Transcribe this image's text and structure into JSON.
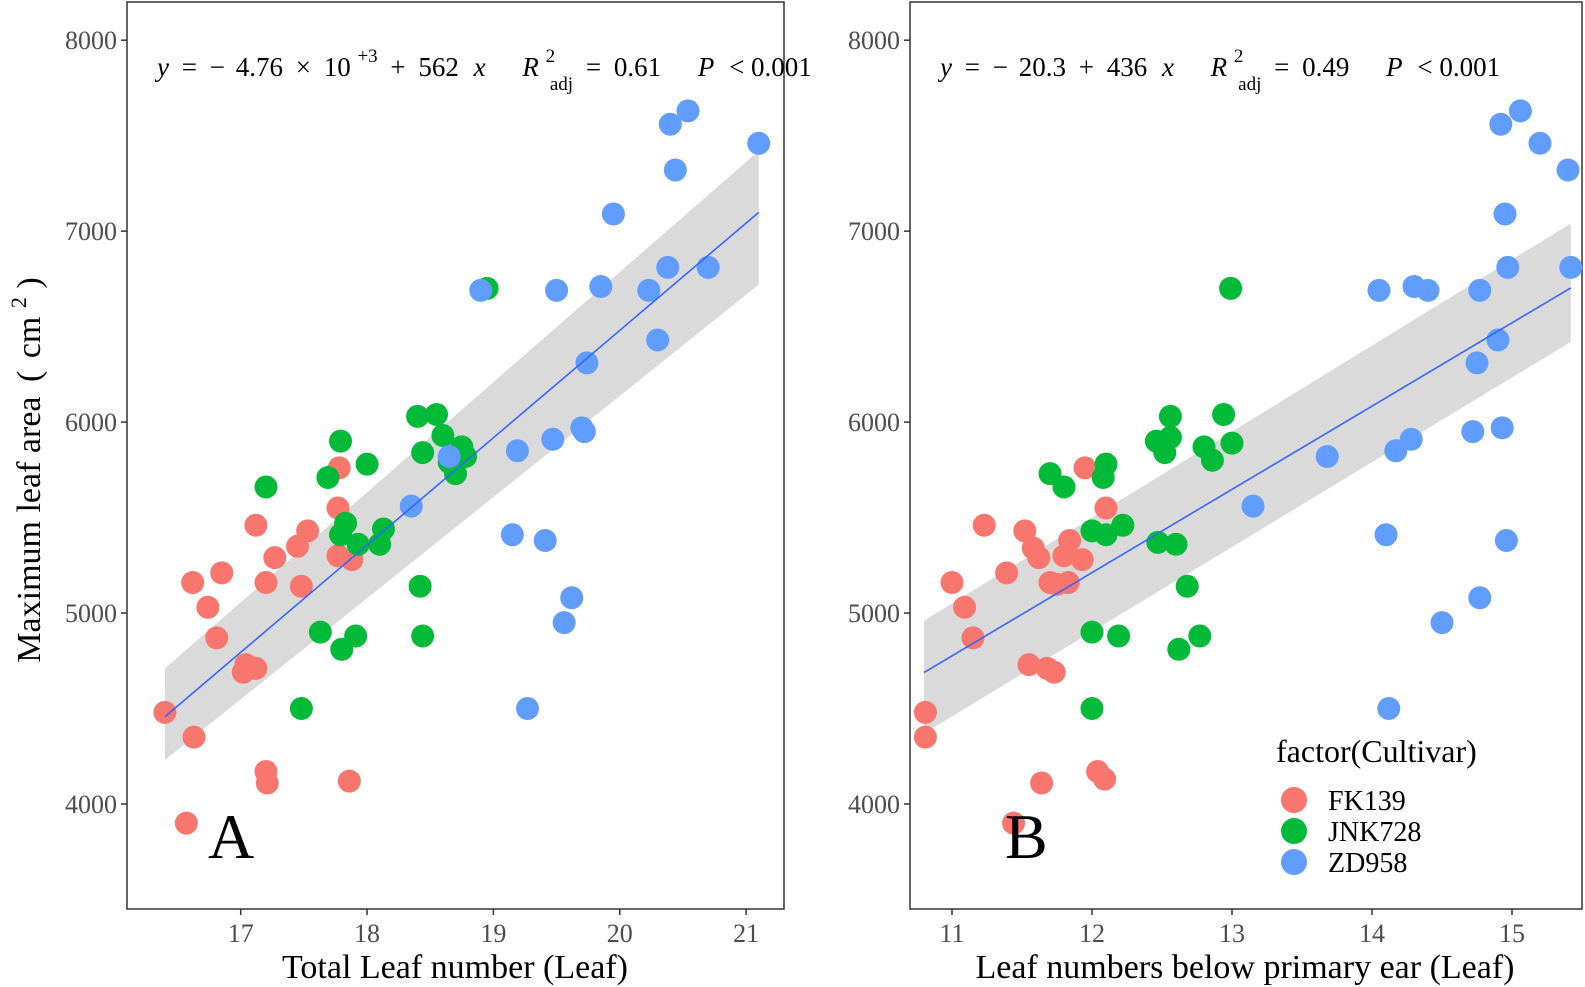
{
  "figure": {
    "ylabel": "Maximum leaf area",
    "ylabel_unit_open": "(",
    "ylabel_unit_base": "cm",
    "ylabel_unit_exp": "2",
    "ylabel_unit_close": ")"
  },
  "legend": {
    "title": "factor(Cultivar)",
    "items": [
      {
        "label": "FK139",
        "color": "#F8766D"
      },
      {
        "label": "JNK728",
        "color": "#00BA38"
      },
      {
        "label": "ZD958",
        "color": "#619CFF"
      }
    ]
  },
  "chart_data": [
    {
      "type": "scatter",
      "panel_label": "A",
      "xlabel": "Total Leaf number (Leaf)",
      "ylabel": "Maximum leaf area (cm2)",
      "xlim": [
        16.1,
        21.3
      ],
      "ylim": [
        3450,
        8200
      ],
      "xticks": [
        "17",
        "18",
        "19",
        "20",
        "21"
      ],
      "yticks": [
        "4000",
        "5000",
        "6000",
        "7000",
        "8000"
      ],
      "equation": {
        "y": "y",
        "eq": "=",
        "minus": "−",
        "intercept_mant": "4.76",
        "times": "×",
        "ten": "10",
        "intercept_exp": "+3",
        "plus": "+",
        "slope": "562",
        "x": "x",
        "r_sym": "R",
        "r_sup": "2",
        "r_sub": "adj",
        "r_val": "0.61",
        "p_sym": "P",
        "p_val": "< 0.001"
      },
      "fit": {
        "intercept": -4760,
        "slope": 562,
        "x_range": [
          16.4,
          21.1
        ],
        "ci_low": [
          4230,
          6720
        ],
        "ci_high": [
          4710,
          7420
        ]
      },
      "series": [
        {
          "name": "FK139",
          "color": "#F8766D",
          "points": [
            [
              16.4,
              4480
            ],
            [
              16.57,
              3900
            ],
            [
              16.62,
              5160
            ],
            [
              16.63,
              4350
            ],
            [
              16.74,
              5030
            ],
            [
              16.85,
              5210
            ],
            [
              16.81,
              4870
            ],
            [
              17.02,
              4690
            ],
            [
              17.04,
              4730
            ],
            [
              17.12,
              5460
            ],
            [
              17.12,
              4710
            ],
            [
              17.2,
              4170
            ],
            [
              17.21,
              4110
            ],
            [
              17.2,
              5160
            ],
            [
              17.27,
              5290
            ],
            [
              17.45,
              5350
            ],
            [
              17.48,
              5140
            ],
            [
              17.53,
              5430
            ],
            [
              17.77,
              5550
            ],
            [
              17.78,
              5760
            ],
            [
              17.77,
              5300
            ],
            [
              17.86,
              4120
            ],
            [
              17.88,
              5280
            ]
          ]
        },
        {
          "name": "JNK728",
          "color": "#00BA38",
          "points": [
            [
              17.2,
              5660
            ],
            [
              17.48,
              4500
            ],
            [
              17.63,
              4900
            ],
            [
              17.69,
              5710
            ],
            [
              17.79,
              5900
            ],
            [
              17.8,
              4810
            ],
            [
              17.79,
              5410
            ],
            [
              17.83,
              5470
            ],
            [
              17.91,
              4880
            ],
            [
              17.93,
              5360
            ],
            [
              18.0,
              5780
            ],
            [
              18.1,
              5360
            ],
            [
              18.13,
              5440
            ],
            [
              18.4,
              6030
            ],
            [
              18.42,
              5140
            ],
            [
              18.44,
              4880
            ],
            [
              18.44,
              5840
            ],
            [
              18.55,
              6040
            ],
            [
              18.6,
              5930
            ],
            [
              18.65,
              5790
            ],
            [
              18.7,
              5730
            ],
            [
              18.75,
              5870
            ],
            [
              18.78,
              5820
            ],
            [
              18.95,
              6700
            ]
          ]
        },
        {
          "name": "ZD958",
          "color": "#619CFF",
          "points": [
            [
              18.35,
              5560
            ],
            [
              18.65,
              5820
            ],
            [
              18.9,
              6690
            ],
            [
              19.15,
              5410
            ],
            [
              19.19,
              5850
            ],
            [
              19.27,
              4500
            ],
            [
              19.41,
              5380
            ],
            [
              19.47,
              5910
            ],
            [
              19.5,
              6690
            ],
            [
              19.56,
              4950
            ],
            [
              19.62,
              5080
            ],
            [
              19.7,
              5970
            ],
            [
              19.72,
              5950
            ],
            [
              19.74,
              6310
            ],
            [
              19.85,
              6710
            ],
            [
              19.95,
              7090
            ],
            [
              20.23,
              6690
            ],
            [
              20.3,
              6430
            ],
            [
              20.38,
              6810
            ],
            [
              20.4,
              7560
            ],
            [
              20.44,
              7320
            ],
            [
              20.54,
              7630
            ],
            [
              20.7,
              6810
            ],
            [
              21.1,
              7460
            ]
          ]
        }
      ]
    },
    {
      "type": "scatter",
      "panel_label": "B",
      "xlabel": "Leaf numbers below primary ear (Leaf)",
      "ylabel": "Maximum leaf area (cm2)",
      "xlim": [
        10.7,
        15.5
      ],
      "ylim": [
        3450,
        8200
      ],
      "xticks": [
        "11",
        "12",
        "13",
        "14",
        "15"
      ],
      "yticks": [
        "4000",
        "5000",
        "6000",
        "7000",
        "8000"
      ],
      "equation": {
        "y": "y",
        "eq": "=",
        "minus": "−",
        "intercept": "20.3",
        "plus": "+",
        "slope": "436",
        "x": "x",
        "r_sym": "R",
        "r_sup": "2",
        "r_sub": "adj",
        "r_val": "0.49",
        "p_sym": "P",
        "p_val": "< 0.001"
      },
      "fit": {
        "intercept": -20.3,
        "slope": 436,
        "x_range": [
          10.8,
          15.42
        ],
        "ci_low": [
          4370,
          6420
        ],
        "ci_high": [
          4960,
          7040
        ]
      },
      "series": [
        {
          "name": "FK139",
          "color": "#F8766D",
          "points": [
            [
              10.81,
              4480
            ],
            [
              10.81,
              4350
            ],
            [
              11.0,
              5160
            ],
            [
              11.09,
              5030
            ],
            [
              11.15,
              4870
            ],
            [
              11.23,
              5460
            ],
            [
              11.39,
              5210
            ],
            [
              11.52,
              5430
            ],
            [
              11.55,
              4730
            ],
            [
              11.58,
              5340
            ],
            [
              11.62,
              5290
            ],
            [
              11.64,
              4110
            ],
            [
              11.68,
              4710
            ],
            [
              11.7,
              5160
            ],
            [
              11.73,
              4690
            ],
            [
              11.75,
              5150
            ],
            [
              11.8,
              5300
            ],
            [
              11.83,
              5160
            ],
            [
              11.84,
              5380
            ],
            [
              11.93,
              5280
            ],
            [
              11.95,
              5760
            ],
            [
              12.04,
              4170
            ],
            [
              12.09,
              4130
            ],
            [
              12.1,
              5550
            ],
            [
              11.44,
              3900
            ]
          ]
        },
        {
          "name": "JNK728",
          "color": "#00BA38",
          "points": [
            [
              11.7,
              5730
            ],
            [
              11.8,
              5660
            ],
            [
              12.0,
              4500
            ],
            [
              12.0,
              4900
            ],
            [
              12.0,
              5430
            ],
            [
              12.08,
              5710
            ],
            [
              12.1,
              5780
            ],
            [
              12.1,
              5410
            ],
            [
              12.19,
              4880
            ],
            [
              12.22,
              5460
            ],
            [
              12.46,
              5900
            ],
            [
              12.47,
              5370
            ],
            [
              12.52,
              5840
            ],
            [
              12.56,
              6030
            ],
            [
              12.56,
              5920
            ],
            [
              12.6,
              5360
            ],
            [
              12.62,
              4810
            ],
            [
              12.68,
              5140
            ],
            [
              12.77,
              4880
            ],
            [
              12.8,
              5870
            ],
            [
              12.86,
              5800
            ],
            [
              12.94,
              6040
            ],
            [
              13.0,
              5890
            ],
            [
              12.99,
              6700
            ]
          ]
        },
        {
          "name": "ZD958",
          "color": "#619CFF",
          "points": [
            [
              13.15,
              5560
            ],
            [
              13.68,
              5820
            ],
            [
              14.05,
              6690
            ],
            [
              14.1,
              5410
            ],
            [
              14.12,
              4500
            ],
            [
              14.17,
              5850
            ],
            [
              14.28,
              5910
            ],
            [
              14.3,
              6710
            ],
            [
              14.4,
              6690
            ],
            [
              14.5,
              4950
            ],
            [
              14.72,
              5950
            ],
            [
              14.75,
              6310
            ],
            [
              14.77,
              5080
            ],
            [
              14.77,
              6690
            ],
            [
              14.9,
              6430
            ],
            [
              14.92,
              7560
            ],
            [
              14.93,
              5970
            ],
            [
              14.95,
              7090
            ],
            [
              14.96,
              5380
            ],
            [
              14.97,
              6810
            ],
            [
              15.06,
              7630
            ],
            [
              15.2,
              7460
            ],
            [
              15.4,
              7320
            ],
            [
              15.42,
              6810
            ]
          ]
        }
      ]
    }
  ]
}
